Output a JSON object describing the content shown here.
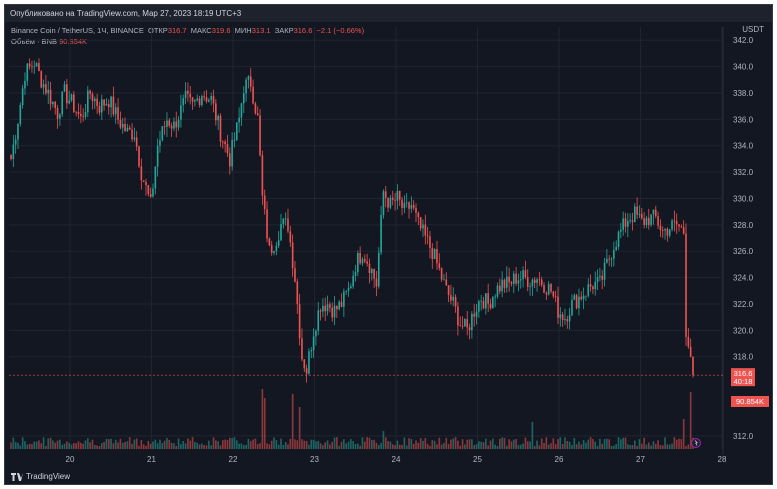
{
  "header": {
    "published": "Опубликовано на TradingView.com, Мар 27, 2023 18:19 UTC+3",
    "currency": "USDT"
  },
  "legend": {
    "symbol": "Binance Coin / TetherUS, 1Ч, BINANCE",
    "open_label": "ОТКР",
    "open_value": "316.7",
    "high_label": "МАКС",
    "high_value": "319.6",
    "low_label": "МИН",
    "low_value": "313.1",
    "close_label": "ЗАКР",
    "close_value": "316.6",
    "change": "−2.1 (−0.66%)",
    "volume_label": "Объём · BNB",
    "volume_value": "90.854K"
  },
  "badges": {
    "price": "316.6",
    "countdown": "40:18",
    "volume": "90.854K"
  },
  "footer": {
    "brand": "TradingView"
  },
  "colors": {
    "up": "#26a69a",
    "down": "#ef5350",
    "bg": "#131722",
    "grid": "#1f2430",
    "text": "#b2b5be"
  },
  "chart_data": {
    "type": "candlestick",
    "title": "Binance Coin / TetherUS, 1Ч, BINANCE",
    "ylim": [
      311,
      343
    ],
    "y_ticks": [
      "342.0",
      "340.0",
      "338.0",
      "336.0",
      "334.0",
      "332.0",
      "330.0",
      "328.0",
      "326.0",
      "324.0",
      "322.0",
      "320.0",
      "318.0",
      "312.0"
    ],
    "x_ticks": [
      "20",
      "21",
      "22",
      "23",
      "24",
      "25",
      "26",
      "27",
      "28"
    ],
    "anchors": [
      [
        0,
        333
      ],
      [
        3,
        336
      ],
      [
        6,
        339.5
      ],
      [
        10,
        340.3
      ],
      [
        13,
        339
      ],
      [
        16,
        338
      ],
      [
        20,
        336.5
      ],
      [
        23,
        338
      ],
      [
        27,
        337
      ],
      [
        30,
        336
      ],
      [
        34,
        338
      ],
      [
        38,
        337
      ],
      [
        42,
        337.5
      ],
      [
        46,
        336
      ],
      [
        50,
        335
      ],
      [
        53,
        335
      ],
      [
        56,
        332
      ],
      [
        60,
        329.5
      ],
      [
        63,
        334
      ],
      [
        67,
        336
      ],
      [
        70,
        335.5
      ],
      [
        75,
        337.5
      ],
      [
        78,
        337
      ],
      [
        82,
        338
      ],
      [
        86,
        337.5
      ],
      [
        90,
        335
      ],
      [
        94,
        333
      ],
      [
        98,
        336
      ],
      [
        100,
        338.5
      ],
      [
        103,
        338.8
      ],
      [
        106,
        336
      ],
      [
        108,
        330
      ],
      [
        111,
        326
      ],
      [
        114,
        327
      ],
      [
        116,
        328
      ],
      [
        119,
        328
      ],
      [
        122,
        324
      ],
      [
        125,
        318
      ],
      [
        127,
        317
      ],
      [
        130,
        320
      ],
      [
        133,
        322
      ],
      [
        136,
        322
      ],
      [
        139,
        321.5
      ],
      [
        142,
        322
      ],
      [
        145,
        323
      ],
      [
        148,
        325
      ],
      [
        151,
        326
      ],
      [
        154,
        325
      ],
      [
        157,
        323.5
      ],
      [
        160,
        330.5
      ],
      [
        163,
        329.5
      ],
      [
        166,
        330
      ],
      [
        169,
        329
      ],
      [
        172,
        329.5
      ],
      [
        175,
        328
      ],
      [
        178,
        327
      ],
      [
        181,
        326
      ],
      [
        184,
        324.5
      ],
      [
        187,
        323
      ],
      [
        190,
        322
      ],
      [
        193,
        320.5
      ],
      [
        196,
        320
      ],
      [
        199,
        321.5
      ],
      [
        202,
        322.5
      ],
      [
        205,
        322
      ],
      [
        208,
        323
      ],
      [
        211,
        323.5
      ],
      [
        214,
        323.5
      ],
      [
        217,
        324
      ],
      [
        220,
        324
      ],
      [
        223,
        323.8
      ],
      [
        226,
        324
      ],
      [
        229,
        323.5
      ],
      [
        232,
        323
      ],
      [
        235,
        321.5
      ],
      [
        238,
        321
      ],
      [
        241,
        322
      ],
      [
        244,
        322.5
      ],
      [
        247,
        323
      ],
      [
        250,
        323.5
      ],
      [
        253,
        323.5
      ],
      [
        256,
        325
      ],
      [
        259,
        326.5
      ],
      [
        262,
        327.5
      ],
      [
        265,
        328.5
      ],
      [
        268,
        328.8
      ],
      [
        271,
        328.2
      ],
      [
        274,
        328.5
      ],
      [
        277,
        328.5
      ],
      [
        280,
        327.5
      ],
      [
        283,
        327.8
      ],
      [
        286,
        328
      ],
      [
        289,
        327.5
      ],
      [
        290,
        319.5
      ],
      [
        292,
        318
      ],
      [
        293,
        317
      ],
      [
        293.6,
        316.6
      ]
    ],
    "volume_spikes": [
      [
        108,
        1.0
      ],
      [
        109,
        0.85
      ],
      [
        121,
        0.92
      ],
      [
        124,
        0.7
      ],
      [
        160,
        0.3
      ],
      [
        224,
        0.45
      ],
      [
        249,
        0.2
      ],
      [
        289,
        0.5
      ],
      [
        292,
        0.95
      ]
    ],
    "last_price": 316.6,
    "last_volume": "90.854K"
  }
}
